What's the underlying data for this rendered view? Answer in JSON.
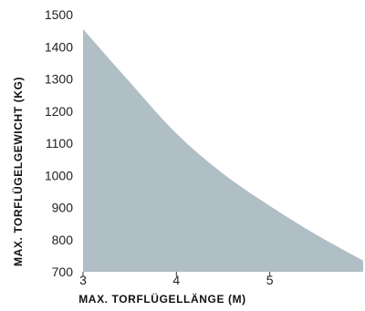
{
  "chart_data": {
    "type": "area",
    "title": "",
    "xlabel": "MAX. TORFLÜGELLÄNGE (M)",
    "ylabel": "MAX. TORFLÜGELGEWICHT (KG)",
    "xlim": [
      3,
      6
    ],
    "ylim": [
      700,
      1500
    ],
    "x_ticks": [
      3,
      4,
      5
    ],
    "y_ticks": [
      700,
      800,
      900,
      1000,
      1100,
      1200,
      1300,
      1400,
      1500
    ],
    "grid": false,
    "legend": "none",
    "fill_color": "#b0bec5",
    "series": [
      {
        "x": [
          3,
          3.5,
          4,
          4.5,
          5,
          5.5,
          6
        ],
        "y": [
          1455,
          1290,
          1130,
          1005,
          905,
          815,
          735
        ]
      }
    ]
  }
}
